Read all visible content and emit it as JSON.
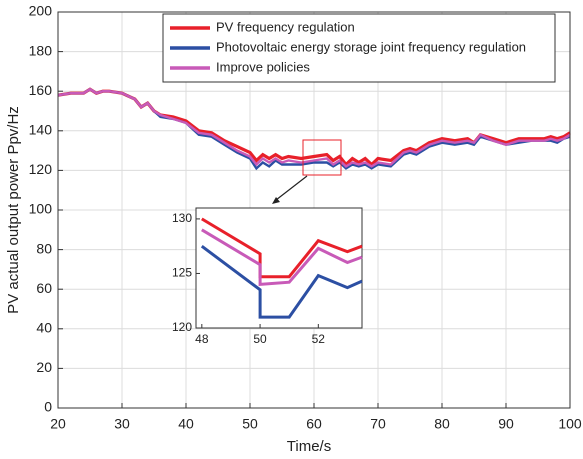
{
  "chart_data": {
    "type": "line",
    "xlabel": "Time/s",
    "ylabel": "PV actual output power Ppv/Hz",
    "x": [
      20,
      22,
      24,
      25,
      26,
      27,
      28,
      30,
      32,
      33,
      34,
      35,
      36,
      38,
      40,
      42,
      44,
      45,
      46,
      48,
      50,
      51,
      52,
      53,
      54,
      55,
      56,
      58,
      60,
      62,
      63,
      64,
      65,
      66,
      67,
      68,
      69,
      70,
      72,
      74,
      75,
      76,
      78,
      80,
      82,
      84,
      85,
      86,
      88,
      90,
      92,
      94,
      96,
      97,
      98,
      99,
      100
    ],
    "series": [
      {
        "name": "PV frequency regulation",
        "color": "#e8202a",
        "values": [
          158,
          159,
          159,
          161,
          159,
          160,
          160,
          159,
          156,
          152,
          154,
          150,
          148,
          147,
          145,
          140,
          139,
          137,
          135,
          132,
          129,
          125,
          128,
          126,
          128,
          126,
          127,
          126,
          127,
          128,
          125,
          127,
          123,
          126,
          124,
          126,
          123,
          126,
          125,
          130,
          131,
          130,
          134,
          136,
          135,
          136,
          134,
          138,
          136,
          134,
          136,
          136,
          136,
          137,
          136,
          137,
          139
        ]
      },
      {
        "name": "Photovoltaic energy storage joint frequency regulation",
        "color": "#2c4fa3",
        "values": [
          158,
          159,
          159,
          161,
          159,
          160,
          160,
          159,
          156,
          152,
          154,
          150,
          147,
          146,
          144,
          138,
          137,
          135,
          133,
          129,
          126,
          121,
          124,
          122,
          125,
          123,
          123,
          123,
          124,
          124,
          122,
          124,
          121,
          123,
          122,
          123,
          121,
          123,
          122,
          128,
          129,
          128,
          132,
          134,
          133,
          134,
          133,
          137,
          135,
          133,
          134,
          135,
          135,
          135,
          134,
          136,
          137
        ]
      },
      {
        "name": "Improve policies",
        "color": "#c85ab8",
        "values": [
          158,
          159,
          159,
          161,
          159,
          160,
          160,
          159,
          156,
          152,
          154,
          150,
          148,
          146,
          144,
          139,
          138,
          136,
          134,
          130,
          127,
          123,
          126,
          124,
          126,
          124,
          125,
          124,
          125,
          126,
          123,
          125,
          122,
          124,
          123,
          124,
          122,
          124,
          123,
          129,
          130,
          129,
          133,
          135,
          134,
          135,
          134,
          138,
          135,
          133,
          135,
          135,
          135,
          136,
          135,
          136,
          138
        ]
      }
    ],
    "xlim": [
      20,
      100
    ],
    "ylim": [
      0,
      200
    ],
    "xticks": [
      20,
      30,
      40,
      50,
      60,
      70,
      80,
      90,
      100
    ],
    "yticks": [
      0,
      20,
      40,
      60,
      80,
      100,
      120,
      140,
      160,
      180,
      200
    ],
    "grid": true,
    "legend": "top",
    "inset": {
      "x": [
        48,
        50,
        50,
        51,
        52,
        53,
        53.5
      ],
      "series": [
        {
          "values": [
            130,
            126.8,
            124.7,
            124.7,
            128,
            127,
            127.5
          ]
        },
        {
          "values": [
            127.5,
            123.5,
            121,
            121,
            124.8,
            123.7,
            124.3
          ]
        },
        {
          "values": [
            129,
            125.8,
            124,
            124.2,
            127.3,
            126,
            126.5
          ]
        }
      ],
      "xlim": [
        47.8,
        53.5
      ],
      "ylim": [
        120,
        131
      ],
      "xticks": [
        48,
        50,
        52
      ],
      "yticks": [
        120,
        125,
        130
      ]
    }
  }
}
